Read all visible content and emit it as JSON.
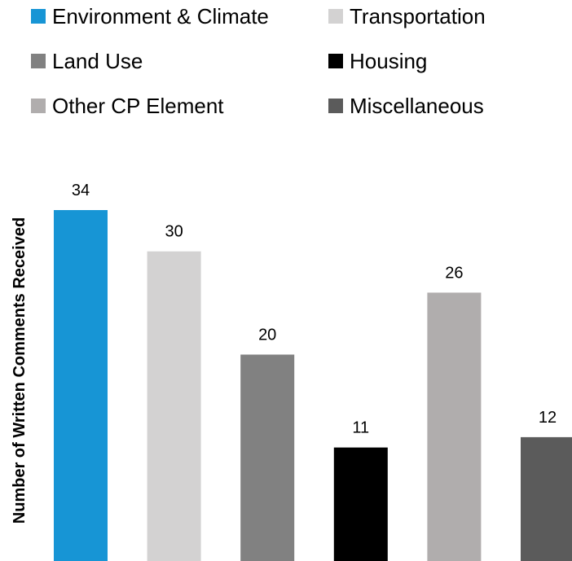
{
  "chart_data": {
    "type": "bar",
    "title": "",
    "xlabel": "",
    "ylabel": "Number of Written Comments Received",
    "categories": [
      "Environment & Climate",
      "Transportation",
      "Land Use",
      "Housing",
      "Other CP Element",
      "Miscellaneous"
    ],
    "values": [
      34,
      30,
      20,
      11,
      26,
      12
    ],
    "colors": [
      "#1795D5",
      "#D3D2D2",
      "#818181",
      "#000000",
      "#B0ADAD",
      "#5B5B5B"
    ],
    "ylim": [
      0,
      34
    ],
    "grid": false,
    "legend_position": "top",
    "data_labels": true
  }
}
